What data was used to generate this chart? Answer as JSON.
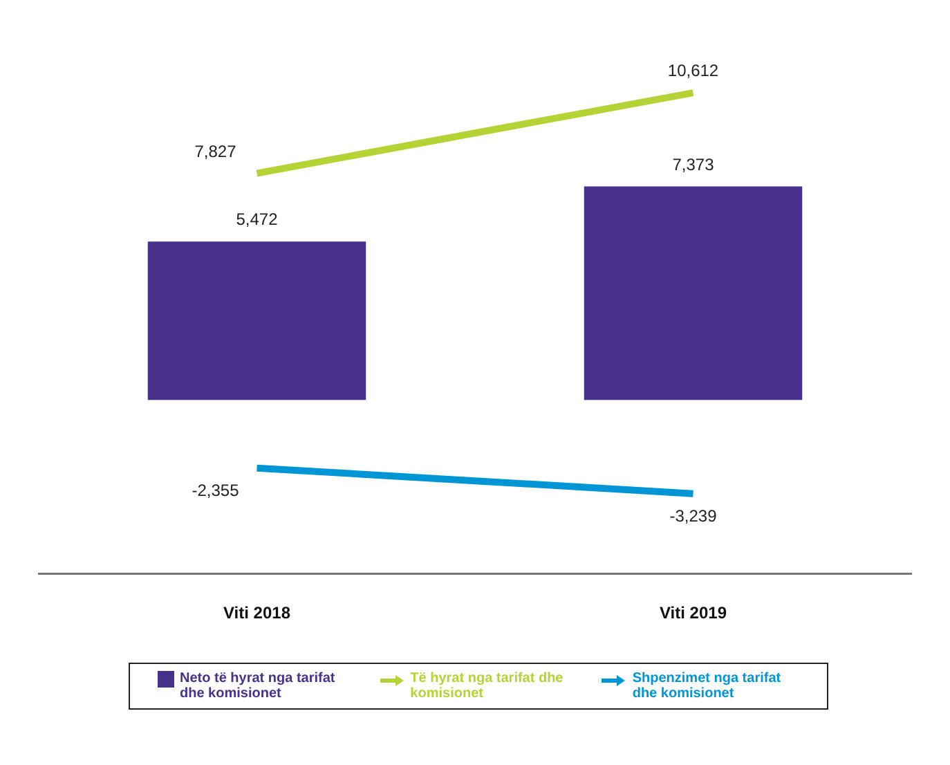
{
  "chart_data": {
    "type": "bar",
    "categories": [
      "Viti 2018",
      "Viti 2019"
    ],
    "legend": "bottom",
    "grid": false,
    "tick_labels": "x",
    "series": [
      {
        "name": "Neto të hyrat nga tarifat dhe komisionet",
        "color": "#48318d",
        "values": [
          5472,
          7373
        ],
        "value_labels": [
          "5,472",
          "7,373"
        ]
      },
      {
        "name": "Të hyrat nga tarifat dhe komisionet",
        "type": "line",
        "color": "#b5d334",
        "values": [
          7827,
          10612
        ],
        "value_labels": [
          "7,827",
          "10,612"
        ]
      },
      {
        "name": "Shpenzimet nga tarifat dhe komisionet",
        "type": "line",
        "color": "#0096d6",
        "values": [
          -2355,
          -3239
        ],
        "value_labels": [
          "-2,355",
          "-3,239"
        ]
      }
    ]
  }
}
